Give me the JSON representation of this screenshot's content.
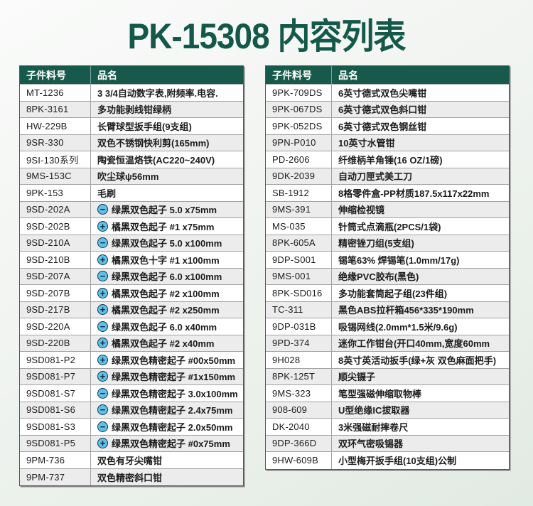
{
  "page": {
    "title": "PK-15308  内容列表"
  },
  "colors": {
    "title_green": "#14584a",
    "header_green": "#17594a",
    "row_alt_gray": "#ececec",
    "icon_blue": "#5ec1e8",
    "icon_border_navy": "#16344f"
  },
  "tables": {
    "headers": {
      "part": "子件料号",
      "name": "品名"
    },
    "left": {
      "rows": [
        {
          "part": "MT-1236",
          "icon": null,
          "name": "3 3/4自动数字表,附频率.电容."
        },
        {
          "part": "8PK-3161",
          "icon": null,
          "name": "多功能剥线钳绿柄"
        },
        {
          "part": "HW-229B",
          "icon": null,
          "name": "长臂球型扳手组(9支组)"
        },
        {
          "part": "9SR-330",
          "icon": null,
          "name": "双色不锈钢快利剪(165mm)"
        },
        {
          "part": "9SI-130系列",
          "icon": null,
          "name": "陶瓷恒温烙铁(AC220~240V)"
        },
        {
          "part": "9MS-153C",
          "icon": null,
          "name": "吹尘球ψ56mm"
        },
        {
          "part": "9PK-153",
          "icon": null,
          "name": "毛刷"
        },
        {
          "part": "9SD-202A",
          "icon": "minus",
          "name": "绿黑双色起子 5.0 x75mm"
        },
        {
          "part": "9SD-202B",
          "icon": "plus",
          "name": "橘黑双色起子 #1 x75mm"
        },
        {
          "part": "9SD-210A",
          "icon": "minus",
          "name": "绿黑双色起子 5.0 x100mm"
        },
        {
          "part": "9SD-210B",
          "icon": "plus",
          "name": "橘黑双色十字 #1 x100mm"
        },
        {
          "part": "9SD-207A",
          "icon": "minus",
          "name": "绿黑双色起子 6.0 x100mm"
        },
        {
          "part": "9SD-207B",
          "icon": "plus",
          "name": "橘黑双色起子 #2 x100mm"
        },
        {
          "part": "9SD-217B",
          "icon": "plus",
          "name": "橘黑双色起子 #2 x250mm"
        },
        {
          "part": "9SD-220A",
          "icon": "minus",
          "name": "绿黑双色起子 6.0 x40mm"
        },
        {
          "part": "9SD-220B",
          "icon": "plus",
          "name": "橘黑双色起子 #2 x40mm"
        },
        {
          "part": "9SD081-P2",
          "icon": "plus",
          "name": "绿黑双色精密起子 #00x50mm"
        },
        {
          "part": "9SD081-P7",
          "icon": "plus",
          "name": "绿黑双色精密起子 #1x150mm"
        },
        {
          "part": "9SD081-S7",
          "icon": "minus",
          "name": "绿黑双色精密起子 3.0x100mm"
        },
        {
          "part": "9SD081-S6",
          "icon": "minus",
          "name": "绿黑双色精密起子 2.4x75mm"
        },
        {
          "part": "9SD081-S3",
          "icon": "minus",
          "name": "绿黑双色精密起子 2.0x50mm"
        },
        {
          "part": "9SD081-P5",
          "icon": "plus",
          "name": "绿黑双色精密起子 #0x75mm"
        },
        {
          "part": "9PM-736",
          "icon": null,
          "name": "双色有牙尖嘴钳"
        },
        {
          "part": "9PM-737",
          "icon": null,
          "name": "双色精密斜口钳"
        }
      ]
    },
    "right": {
      "rows": [
        {
          "part": "9PK-709DS",
          "icon": null,
          "name": "6英寸德式双色尖嘴钳"
        },
        {
          "part": "9PK-067DS",
          "icon": null,
          "name": "6英寸德式双色斜口钳"
        },
        {
          "part": "9PK-052DS",
          "icon": null,
          "name": "6英寸德式双色钢丝钳"
        },
        {
          "part": "9PN-P010",
          "icon": null,
          "name": "10英寸水管钳"
        },
        {
          "part": "PD-2606",
          "icon": null,
          "name": "纤维柄羊角锤(16 OZ/1磅)"
        },
        {
          "part": "9DK-2039",
          "icon": null,
          "name": "自动刀匣式美工刀"
        },
        {
          "part": "SB-1912",
          "icon": null,
          "name": "8格零件盒-PP材质187.5x117x22mm"
        },
        {
          "part": "9MS-391",
          "icon": null,
          "name": "伸缩检视镜"
        },
        {
          "part": "MS-035",
          "icon": null,
          "name": "针筒式点滴瓶(2PCS/1袋)"
        },
        {
          "part": "8PK-605A",
          "icon": null,
          "name": "精密锉刀组(5支组)"
        },
        {
          "part": "9DP-S001",
          "icon": null,
          "name": "锡笔63% 焊锡笔(1.0mm/17g)"
        },
        {
          "part": "9MS-001",
          "icon": null,
          "name": "绝缘PVC胶布(黑色)"
        },
        {
          "part": "8PK-SD016",
          "icon": null,
          "name": "多功能套筒起子组(23件组)"
        },
        {
          "part": "TC-311",
          "icon": null,
          "name": "黑色ABS拉杆箱456*335*190mm"
        },
        {
          "part": "9DP-031B",
          "icon": null,
          "name": "吸锡网线(2.0mm*1.5米/9.6g)"
        },
        {
          "part": "9PD-374",
          "icon": null,
          "name": "迷你工作钳台(开口40mm,宽度60mm"
        },
        {
          "part": "9H028",
          "icon": null,
          "name": "8英寸英活动扳手(绿+灰 双色麻面把手)"
        },
        {
          "part": "8PK-125T",
          "icon": null,
          "name": "顺尖镊子"
        },
        {
          "part": "9MS-323",
          "icon": null,
          "name": "笔型强磁伸缩取物棒"
        },
        {
          "part": "908-609",
          "icon": null,
          "name": "U型绝缘IC拔取器"
        },
        {
          "part": "DK-2040",
          "icon": null,
          "name": "3米强磁耐摔卷尺"
        },
        {
          "part": "9DP-366D",
          "icon": null,
          "name": "双环气密吸锡器"
        },
        {
          "part": "9HW-609B",
          "icon": null,
          "name": "小型梅开扳手组(10支组)公制"
        }
      ]
    }
  }
}
